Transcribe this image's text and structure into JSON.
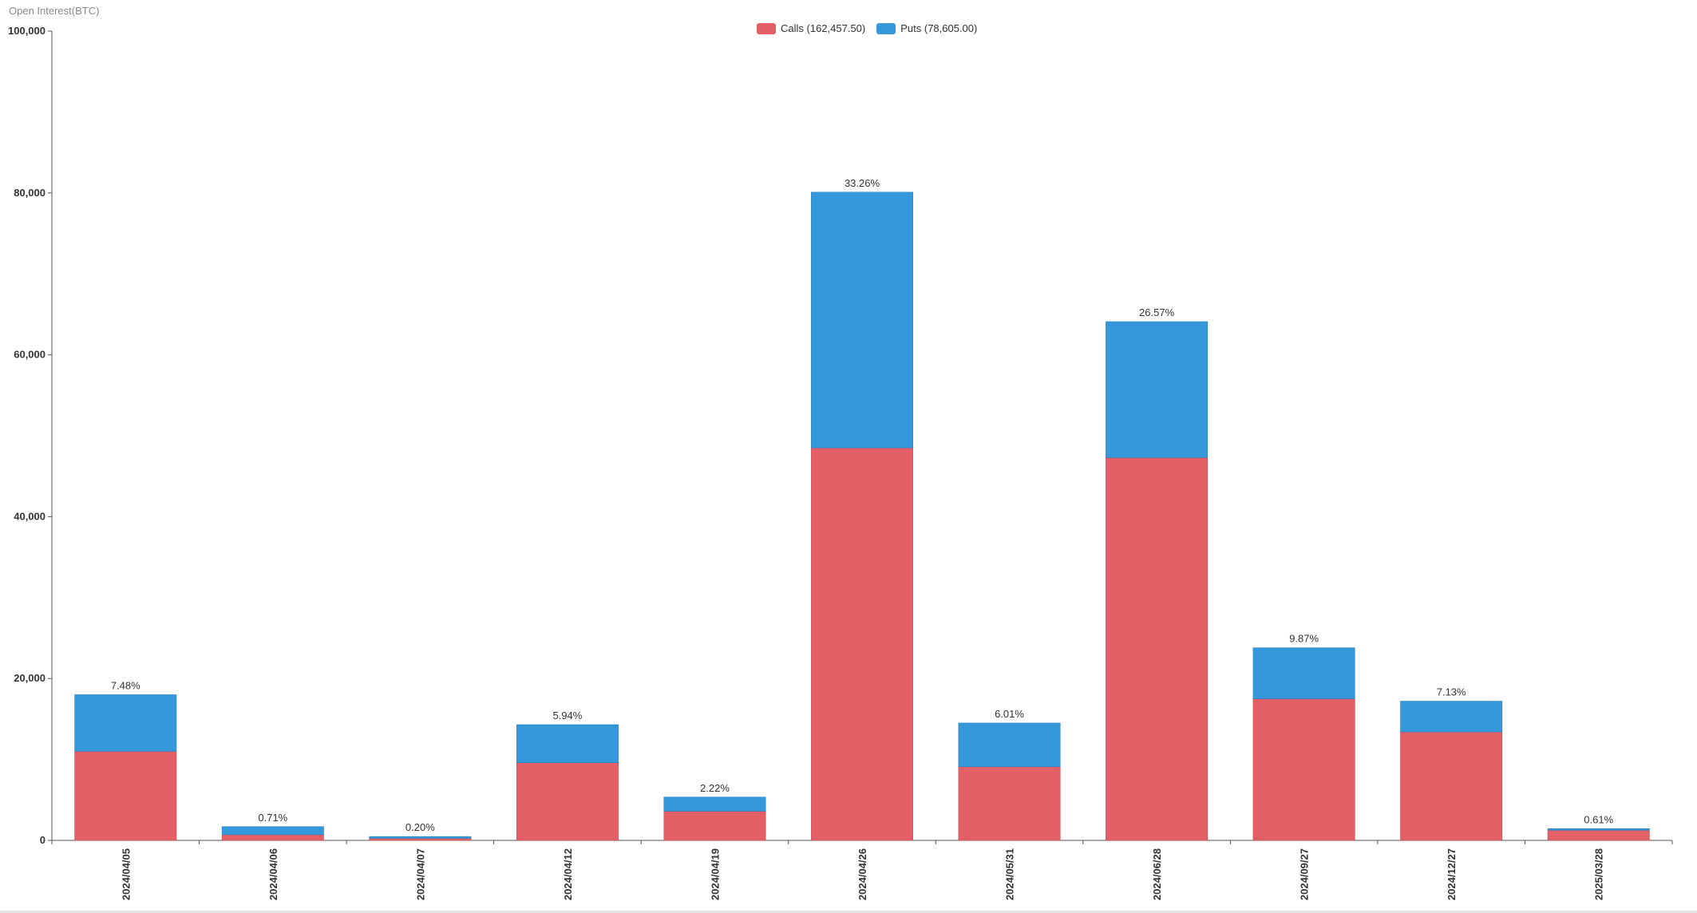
{
  "chart_data": {
    "type": "bar",
    "stacked": true,
    "title": "",
    "ylabel": "Open Interest(BTC)",
    "xlabel": "",
    "ylim": [
      0,
      100000
    ],
    "yticks": [
      0,
      20000,
      40000,
      60000,
      80000,
      100000
    ],
    "ytick_labels": [
      "0",
      "20,000",
      "40,000",
      "60,000",
      "80,000",
      "100,000"
    ],
    "categories": [
      "2024/04/05",
      "2024/04/06",
      "2024/04/07",
      "2024/04/12",
      "2024/04/19",
      "2024/04/26",
      "2024/05/31",
      "2024/06/28",
      "2024/09/27",
      "2024/12/27",
      "2025/03/28"
    ],
    "series": [
      {
        "name": "Calls",
        "legend_label": "Calls (162,457.50)",
        "color": "#e36166",
        "values": [
          11000,
          700,
          250,
          9600,
          3600,
          48500,
          9100,
          47300,
          17500,
          13400,
          1250
        ]
      },
      {
        "name": "Puts",
        "legend_label": "Puts (78,605.00)",
        "color": "#3498db",
        "values": [
          7000,
          1000,
          230,
          4700,
          1750,
          31600,
          5400,
          16800,
          6300,
          3800,
          200
        ]
      }
    ],
    "percent_labels": [
      "7.48%",
      "0.71%",
      "0.20%",
      "5.94%",
      "2.22%",
      "33.26%",
      "6.01%",
      "26.57%",
      "9.87%",
      "7.13%",
      "0.61%"
    ],
    "legend_position": "top-center",
    "grid": false
  }
}
